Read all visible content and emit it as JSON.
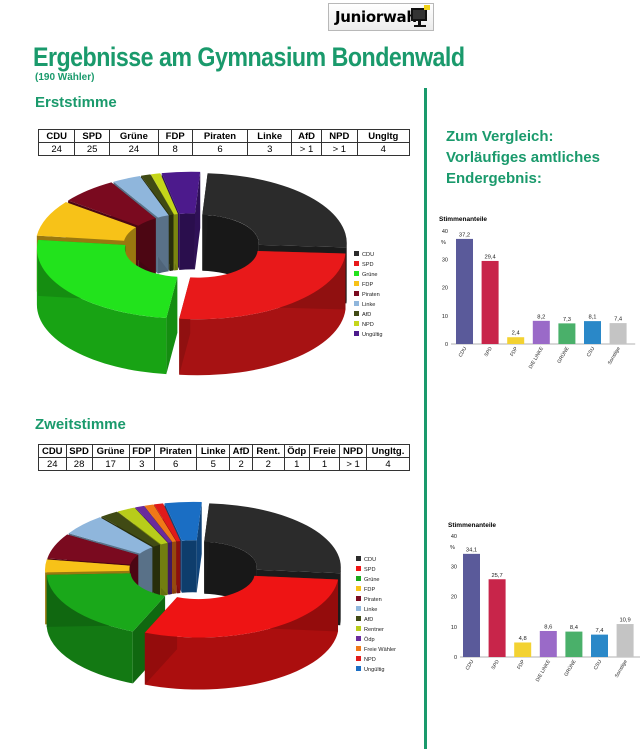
{
  "logo": {
    "text": "Juniorwahl",
    "icon": "computer-monitor-icon"
  },
  "header": {
    "title": "Ergebnisse am Gymnasium Bondenwald",
    "subtitle": "(190 Wähler)"
  },
  "compare_text": [
    "Zum Vergleich:",
    "Vorläufiges amtliches",
    "Endergebnis:"
  ],
  "erststimme": {
    "heading": "Erststimme",
    "table": {
      "headers": [
        "CDU",
        "SPD",
        "Grüne",
        "FDP",
        "Piraten",
        "Linke",
        "AfD",
        "NPD",
        "Ungltg"
      ],
      "values": [
        "24",
        "25",
        "24",
        "8",
        "6",
        "3",
        "> 1",
        "> 1",
        "4"
      ]
    }
  },
  "zweitstimme": {
    "heading": "Zweitstimme",
    "table": {
      "headers": [
        "CDU",
        "SPD",
        "Grüne",
        "FDP",
        "Piraten",
        "Linke",
        "AfD",
        "Rent.",
        "Ödp",
        "Freie",
        "NPD",
        "Ungltg."
      ],
      "values": [
        "24",
        "28",
        "17",
        "3",
        "6",
        "5",
        "2",
        "2",
        "1",
        "1",
        "> 1",
        "4"
      ]
    }
  },
  "chart_data": [
    {
      "type": "pie",
      "variant": "3d-donut-exploded",
      "title": "",
      "categories": [
        "CDU",
        "SPD",
        "Grüne",
        "FDP",
        "Piraten",
        "Linke",
        "AfD",
        "NPD",
        "Ungültig"
      ],
      "values": [
        24,
        25,
        24,
        8,
        6,
        3,
        1,
        1,
        4
      ],
      "colors": [
        "#2b2b2b",
        "#e8191a",
        "#22e31c",
        "#f7c218",
        "#7a0a1f",
        "#8fb6dc",
        "#404a14",
        "#c5d61a",
        "#4c1a8c"
      ],
      "legend": [
        "CDU",
        "SPD",
        "Grüne",
        "FDP",
        "Piraten",
        "Linke",
        "AfD",
        "NPD",
        "Ungültig"
      ],
      "legend_position": "right"
    },
    {
      "type": "pie",
      "variant": "3d-donut-exploded",
      "title": "",
      "categories": [
        "CDU",
        "SPD",
        "Grüne",
        "FDP",
        "Piraten",
        "Linke",
        "AfD",
        "Rentner",
        "Ödp",
        "Freie Wähler",
        "NPD",
        "Ungültig"
      ],
      "values": [
        24,
        28,
        17,
        3,
        6,
        5,
        2,
        2,
        1,
        1,
        1,
        4
      ],
      "colors": [
        "#2b2b2b",
        "#ee1414",
        "#1aa81a",
        "#f7c218",
        "#7a0a1f",
        "#8fb6dc",
        "#404a14",
        "#b8cc1a",
        "#6a2a9c",
        "#f07818",
        "#e01a1a",
        "#1a6ec4"
      ],
      "legend": [
        "CDU",
        "SPD",
        "Grüne",
        "FDP",
        "Piraten",
        "Linke",
        "AfD",
        "Rentner",
        "Ödp",
        "Freie Wähler",
        "NPD",
        "Ungültig"
      ],
      "legend_position": "right"
    },
    {
      "type": "bar",
      "title": "Stimmenanteile",
      "ylabel": "%",
      "categories": [
        "CDU",
        "SPD",
        "FDP",
        "DIE LINKE",
        "GRÜNE",
        "CSU",
        "Sonstige"
      ],
      "values": [
        37.2,
        29.4,
        2.4,
        8.2,
        7.3,
        8.1,
        7.4
      ],
      "labels": [
        "37,2",
        "29,4",
        "2,4",
        "8,2",
        "7,3",
        "8,1",
        "7,4"
      ],
      "colors": [
        "#5a5a9a",
        "#c8254a",
        "#f3d232",
        "#9a6ac8",
        "#4ab06a",
        "#2a88c8",
        "#c4c4c4"
      ],
      "ylim": [
        0,
        40
      ],
      "yticks": [
        0,
        10,
        20,
        30,
        40
      ]
    },
    {
      "type": "bar",
      "title": "Stimmenanteile",
      "ylabel": "%",
      "categories": [
        "CDU",
        "SPD",
        "FDP",
        "DIE LINKE",
        "GRÜNE",
        "CSU",
        "Sonstige"
      ],
      "values": [
        34.1,
        25.7,
        4.8,
        8.6,
        8.4,
        7.4,
        10.9
      ],
      "labels": [
        "34,1",
        "25,7",
        "4,8",
        "8,6",
        "8,4",
        "7,4",
        "10,9"
      ],
      "colors": [
        "#5a5a9a",
        "#c8254a",
        "#f3d232",
        "#9a6ac8",
        "#4ab06a",
        "#2a88c8",
        "#c4c4c4"
      ],
      "ylim": [
        0,
        40
      ],
      "yticks": [
        0,
        10,
        20,
        30,
        40
      ]
    }
  ]
}
